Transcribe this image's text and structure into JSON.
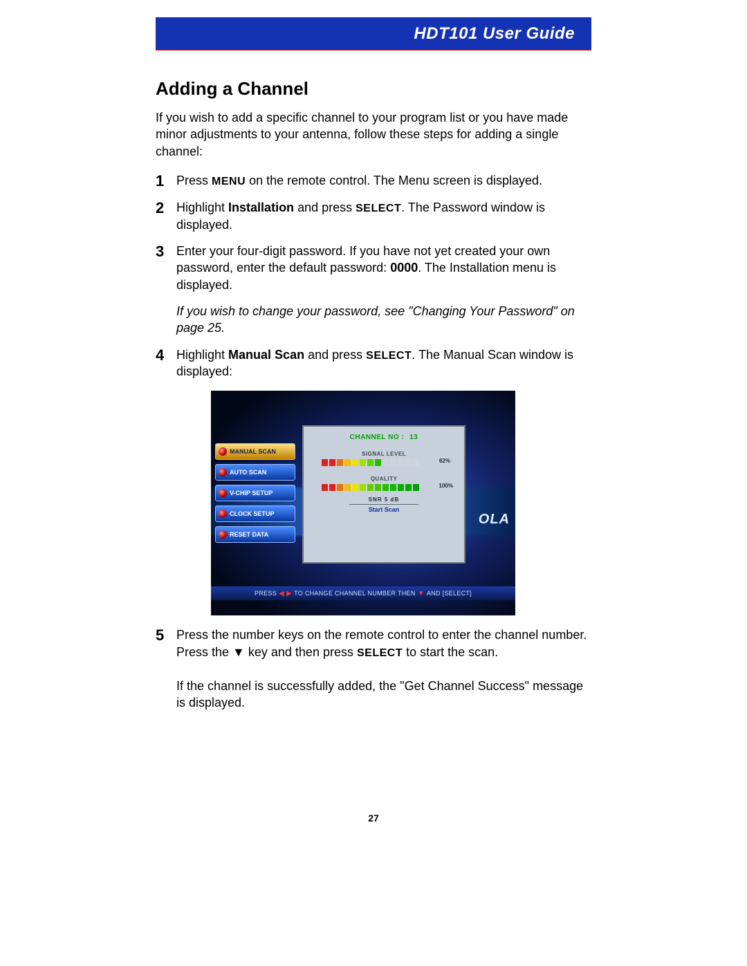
{
  "header": {
    "title": "HDT101 User Guide"
  },
  "section": {
    "title": "Adding a Channel"
  },
  "intro": "If you wish to add a specific channel to your program list or you have made minor adjustments to your antenna, follow these steps for adding a single channel:",
  "steps": {
    "s1": {
      "num": "1",
      "pre": "Press ",
      "key": "MENU",
      "post": " on the remote control. The Menu screen is displayed."
    },
    "s2": {
      "num": "2",
      "pre": "Highlight ",
      "b": "Installation",
      "mid": " and press ",
      "key": "SELECT",
      "post": ". The Password window is displayed."
    },
    "s3": {
      "num": "3",
      "pre": "Enter your four-digit password. If you have not yet created your own password, enter the default password: ",
      "b": "0000",
      "post": ". The Installation menu is displayed."
    },
    "note": "If you wish to change your password, see \"Changing Your Password\" on page 25.",
    "s4": {
      "num": "4",
      "pre": "Highlight ",
      "b": "Manual Scan",
      "mid": " and press ",
      "key": "SELECT",
      "post": ". The Manual Scan window is displayed:"
    },
    "s5a": {
      "num": "5",
      "pre": "Press the number keys on the remote control to enter the channel number. Press the ",
      "sym": "▼",
      "mid": " key and then press ",
      "key": "SELECT",
      "post": " to start the scan."
    },
    "s5b": "If the channel is successfully added, the \"Get Channel Success\" message is displayed."
  },
  "tv": {
    "brand": "OLA",
    "menu": [
      "MANUAL SCAN",
      "AUTO SCAN",
      "V-CHIP SETUP",
      "CLOCK SETUP",
      "RESET DATA"
    ],
    "panel": {
      "channel_label": "CHANNEL NO :",
      "channel_no": "13",
      "signal_label": "SIGNAL LEVEL",
      "signal_pct": "62%",
      "quality_label": "QUALITY",
      "quality_pct": "100%",
      "snr": "SNR    5   dB",
      "start": "Start Scan",
      "signal_colors": [
        "#e02020",
        "#e02020",
        "#f07000",
        "#f0c000",
        "#f0e000",
        "#a0e000",
        "#60d000",
        "#20c000",
        "#d0d4da",
        "#d0d4da",
        "#d0d4da",
        "#d0d4da",
        "#d0d4da"
      ],
      "quality_colors": [
        "#e02020",
        "#e02020",
        "#f07000",
        "#f0c000",
        "#f0e000",
        "#a0e000",
        "#60d000",
        "#40c800",
        "#20c000",
        "#10b800",
        "#00b000",
        "#00a800",
        "#00a000"
      ]
    },
    "hint_pre": "PRESS ",
    "hint_lr": "◀ ▶",
    "hint_mid": " TO CHANGE CHANNEL NUMBER THEN ",
    "hint_dn": "▼",
    "hint_post": " AND [SELECT]"
  },
  "page_number": "27"
}
